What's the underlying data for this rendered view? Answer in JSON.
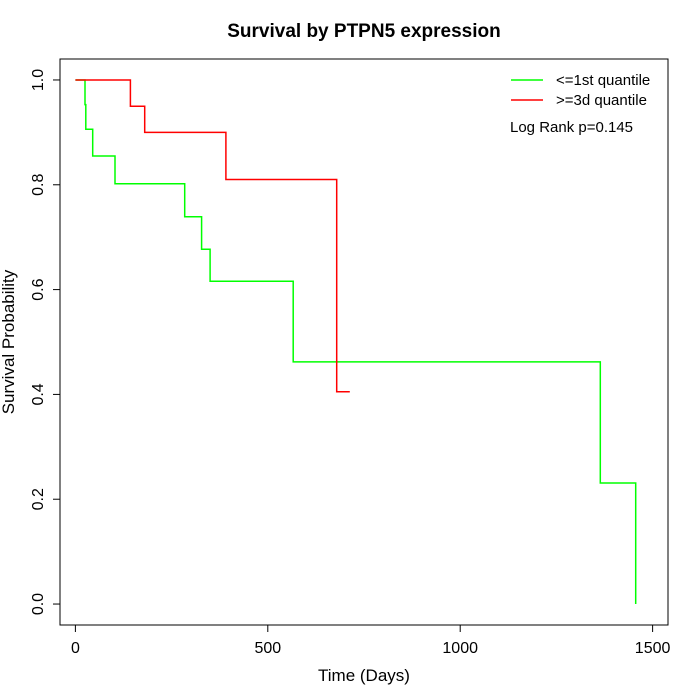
{
  "chart_data": {
    "type": "line",
    "title": "Survival by PTPN5 expression",
    "xlabel": "Time (Days)",
    "ylabel": "Survival Probability",
    "xlim": [
      -40,
      1540
    ],
    "ylim": [
      -0.04,
      1.04
    ],
    "x_ticks": [
      "0",
      "500",
      "1000",
      "1500"
    ],
    "y_ticks": [
      "0.0",
      "0.2",
      "0.4",
      "0.6",
      "0.8",
      "1.0"
    ],
    "grid": false,
    "legend_position": "top-right",
    "annotation": "Log Rank p=0.145",
    "series": [
      {
        "name": "<=1st quantile",
        "color": "#00ff00",
        "steps": [
          [
            0,
            1.0
          ],
          [
            25,
            1.0
          ],
          [
            25,
            0.953
          ],
          [
            27,
            0.953
          ],
          [
            27,
            0.906
          ],
          [
            45,
            0.906
          ],
          [
            45,
            0.855
          ],
          [
            103,
            0.855
          ],
          [
            103,
            0.802
          ],
          [
            284,
            0.802
          ],
          [
            284,
            0.739
          ],
          [
            328,
            0.739
          ],
          [
            328,
            0.677
          ],
          [
            350,
            0.677
          ],
          [
            350,
            0.616
          ],
          [
            566,
            0.616
          ],
          [
            566,
            0.462
          ],
          [
            1364,
            0.462
          ],
          [
            1364,
            0.231
          ],
          [
            1456,
            0.231
          ],
          [
            1456,
            0.0
          ]
        ]
      },
      {
        "name": ">=3d quantile",
        "color": "#ff0000",
        "steps": [
          [
            0,
            1.0
          ],
          [
            143,
            1.0
          ],
          [
            143,
            0.95
          ],
          [
            180,
            0.95
          ],
          [
            180,
            0.9
          ],
          [
            391,
            0.9
          ],
          [
            391,
            0.81
          ],
          [
            679,
            0.81
          ],
          [
            679,
            0.405
          ],
          [
            713,
            0.405
          ]
        ]
      }
    ]
  }
}
